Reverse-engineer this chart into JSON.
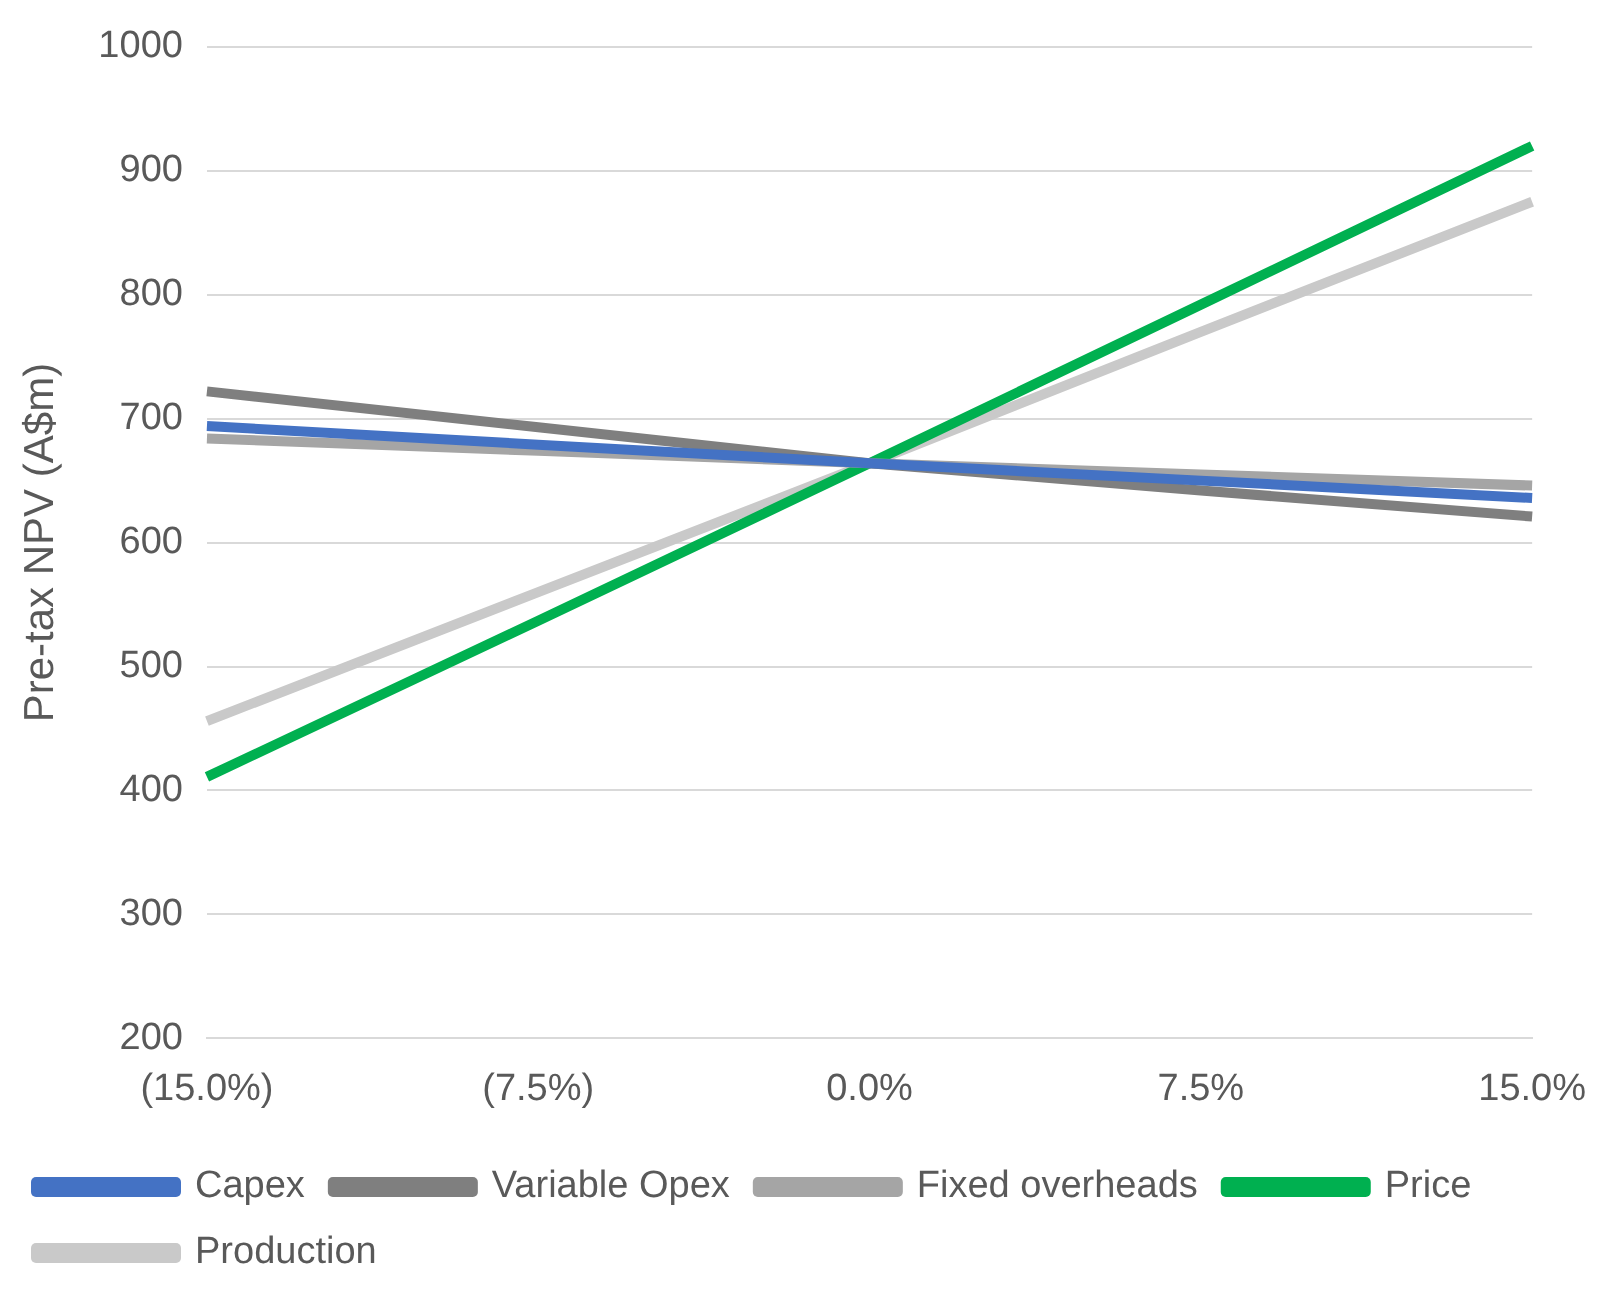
{
  "chart_data": {
    "type": "line",
    "ylabel": "Pre-tax NPV (A$m)",
    "categories": [
      "(15.0%)",
      "(7.5%)",
      "0.0%",
      "7.5%",
      "15.0%"
    ],
    "series": [
      {
        "name": "Capex",
        "color": "#4472c4",
        "values": [
          694,
          679,
          664,
          650,
          636
        ]
      },
      {
        "name": "Variable Opex",
        "color": "#7f7f7f",
        "values": [
          722,
          693,
          664,
          642,
          621
        ]
      },
      {
        "name": "Fixed overheads",
        "color": "#a5a5a5",
        "values": [
          684,
          674,
          664,
          655,
          646
        ]
      },
      {
        "name": "Price",
        "color": "#00b050",
        "values": [
          411,
          537,
          664,
          792,
          920
        ]
      },
      {
        "name": "Production",
        "color": "#c9c9c9",
        "values": [
          456,
          560,
          664,
          770,
          875
        ]
      }
    ],
    "ylim": [
      200,
      1000
    ],
    "yticks": [
      200,
      300,
      400,
      500,
      600,
      700,
      800,
      900,
      1000
    ],
    "grid": "y",
    "legend": "bottom",
    "marker": "none",
    "line_style": "solid"
  }
}
